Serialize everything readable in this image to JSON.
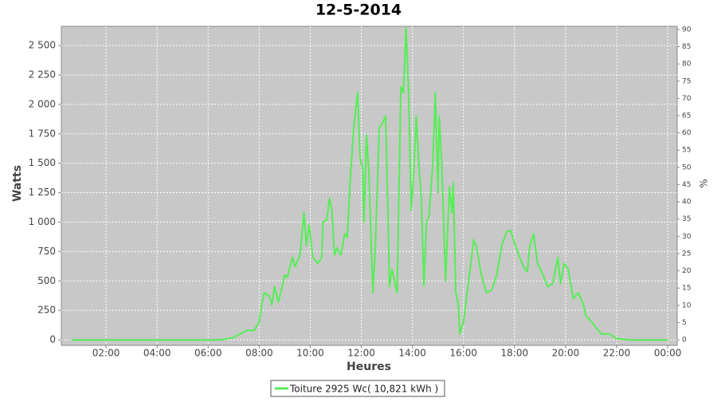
{
  "chart_data": {
    "type": "line",
    "title": "12-5-2014",
    "x_label": "Heures",
    "y_label": "Watts",
    "y2_label": "%",
    "xlim": [
      0.25,
      24.37
    ],
    "xticks": [
      {
        "value": 2,
        "label": "02:00"
      },
      {
        "value": 4,
        "label": "04:00"
      },
      {
        "value": 6,
        "label": "06:00"
      },
      {
        "value": 8,
        "label": "08:00"
      },
      {
        "value": 10,
        "label": "10:00"
      },
      {
        "value": 12,
        "label": "12:00"
      },
      {
        "value": 14,
        "label": "14:00"
      },
      {
        "value": 16,
        "label": "16:00"
      },
      {
        "value": 18,
        "label": "18:00"
      },
      {
        "value": 20,
        "label": "20:00"
      },
      {
        "value": 22,
        "label": "22:00"
      },
      {
        "value": 24,
        "label": "00:00"
      }
    ],
    "ylim": [
      -47,
      2663
    ],
    "yticks": [
      0,
      250,
      500,
      750,
      {
        "value": 1000,
        "label": "1 000"
      },
      {
        "value": 1250,
        "label": "1 250"
      },
      {
        "value": 1500,
        "label": "1 500"
      },
      {
        "value": 1750,
        "label": "1 750"
      },
      {
        "value": 2000,
        "label": "2 000"
      },
      {
        "value": 2250,
        "label": "2 250"
      },
      {
        "value": 2500,
        "label": "2 500"
      }
    ],
    "y2lim": [
      -1.6,
      90.9
    ],
    "y2ticks": [
      0,
      5,
      10,
      15,
      20,
      25,
      30,
      35,
      40,
      45,
      50,
      55,
      60,
      65,
      70,
      75,
      80,
      85,
      90
    ],
    "grid": true,
    "legend": "bottom",
    "x": [
      0.65,
      6.5,
      7.0,
      7.5,
      7.8,
      8.0,
      8.1,
      8.2,
      8.4,
      8.5,
      8.6,
      8.75,
      8.9,
      9.0,
      9.1,
      9.3,
      9.4,
      9.6,
      9.75,
      9.85,
      9.95,
      10.1,
      10.3,
      10.45,
      10.5,
      10.65,
      10.75,
      10.85,
      10.95,
      11.05,
      11.2,
      11.35,
      11.45,
      11.55,
      11.7,
      11.85,
      11.95,
      12.05,
      12.1,
      12.2,
      12.3,
      12.45,
      12.55,
      12.7,
      12.85,
      12.95,
      13.05,
      13.1,
      13.2,
      13.3,
      13.4,
      13.55,
      13.65,
      13.75,
      13.85,
      13.95,
      14.05,
      14.15,
      14.25,
      14.35,
      14.45,
      14.55,
      14.65,
      14.8,
      14.9,
      15.0,
      15.05,
      15.15,
      15.3,
      15.45,
      15.55,
      15.6,
      15.7,
      15.8,
      15.85,
      16.0,
      16.2,
      16.4,
      16.5,
      16.7,
      16.9,
      17.1,
      17.3,
      17.5,
      17.7,
      17.85,
      18.0,
      18.2,
      18.35,
      18.5,
      18.6,
      18.75,
      18.9,
      19.1,
      19.3,
      19.5,
      19.7,
      19.8,
      19.95,
      20.1,
      20.3,
      20.5,
      20.7,
      20.8,
      21.0,
      21.2,
      21.4,
      21.7,
      22.0,
      22.5,
      24.0
    ],
    "series": [
      {
        "name": "Toiture 2925 Wc( 10,821 kWh )",
        "color": "#55ee55",
        "values": [
          0,
          0,
          20,
          80,
          80,
          150,
          300,
          400,
          370,
          300,
          450,
          320,
          450,
          550,
          530,
          700,
          620,
          720,
          1080,
          800,
          980,
          700,
          650,
          700,
          1000,
          1020,
          1200,
          1100,
          720,
          780,
          720,
          900,
          870,
          1300,
          1800,
          2100,
          1550,
          1450,
          1000,
          1740,
          1400,
          400,
          800,
          1800,
          1850,
          1900,
          1000,
          450,
          600,
          500,
          400,
          2150,
          2100,
          2650,
          2100,
          1100,
          1400,
          1900,
          1500,
          1200,
          460,
          1000,
          1050,
          1500,
          2100,
          1250,
          1900,
          1500,
          500,
          1300,
          1080,
          1330,
          400,
          300,
          50,
          150,
          500,
          850,
          800,
          550,
          400,
          420,
          550,
          800,
          920,
          930,
          820,
          700,
          620,
          580,
          800,
          900,
          650,
          560,
          450,
          480,
          700,
          480,
          650,
          600,
          350,
          400,
          300,
          200,
          160,
          100,
          50,
          50,
          10,
          0,
          0
        ]
      }
    ]
  }
}
